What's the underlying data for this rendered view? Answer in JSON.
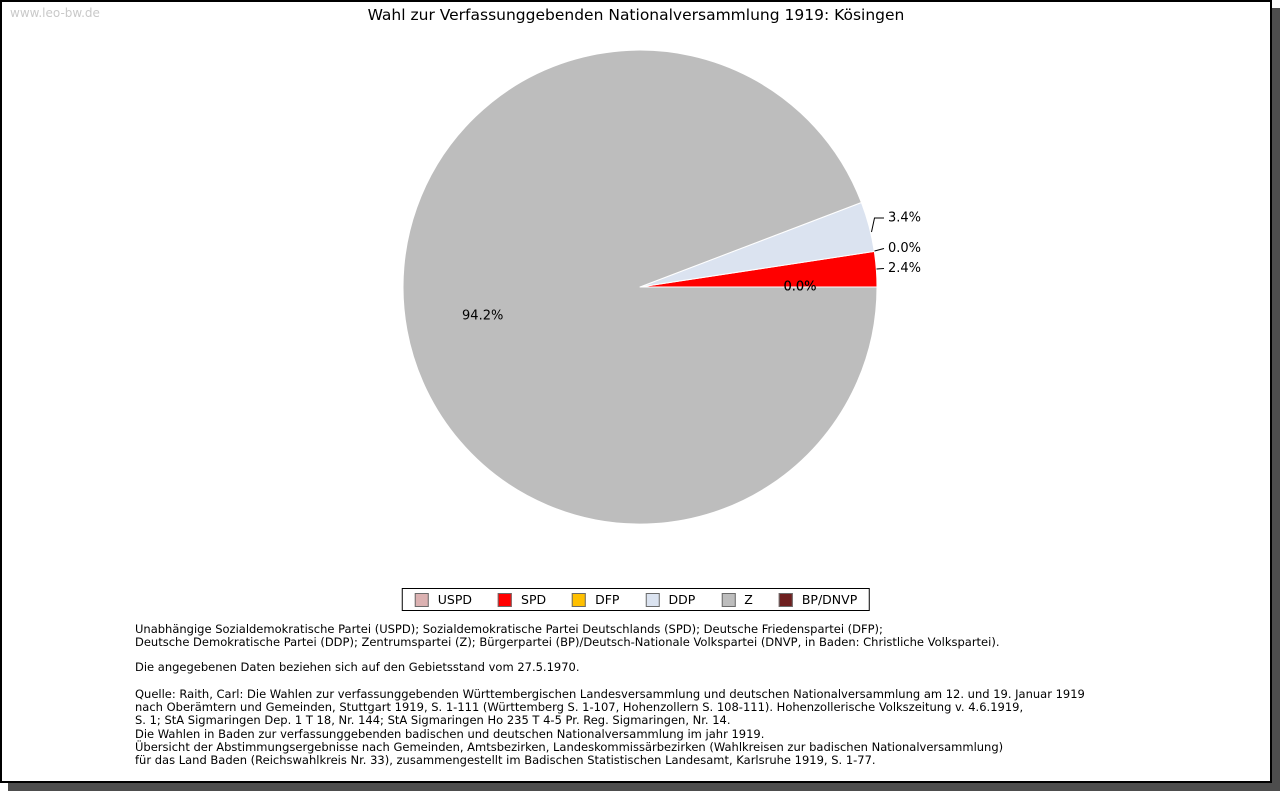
{
  "watermark": "www.leo-bw.de",
  "title": "Wahl zur Verfassunggebenden Nationalversammlung 1919: Kösingen",
  "chart_data": {
    "type": "pie",
    "title": "Wahl zur Verfassunggebenden Nationalversammlung 1919: Kösingen",
    "unit": "percent",
    "start_angle_deg": 0,
    "direction": "counterclockwise",
    "slices": [
      {
        "label": "USPD",
        "value": 0.0,
        "value_label": "0.0%",
        "color": "#dcb2b2",
        "label_placement": "inside"
      },
      {
        "label": "SPD",
        "value": 2.4,
        "value_label": "2.4%",
        "color": "#ff0000",
        "label_placement": "outside"
      },
      {
        "label": "DFP",
        "value": 0.0,
        "value_label": "0.0%",
        "color": "#ffc000",
        "label_placement": "outside"
      },
      {
        "label": "DDP",
        "value": 3.4,
        "value_label": "3.4%",
        "color": "#dbe3f0",
        "label_placement": "outside"
      },
      {
        "label": "Z",
        "value": 94.2,
        "value_label": "94.2%",
        "color": "#bdbdbd",
        "label_placement": "inside"
      },
      {
        "label": "BP/DNVP",
        "value": 0.0,
        "value_label": "0.0%",
        "color": "#6e1f1f",
        "label_placement": "inside"
      }
    ],
    "legend_position": "bottom",
    "legend_entries": [
      "USPD",
      "SPD",
      "DFP",
      "DDP",
      "Z",
      "BP/DNVP"
    ]
  },
  "footnotes": {
    "party_lines": [
      "Unabhängige Sozialdemokratische Partei (USPD); Sozialdemokratische Partei Deutschlands (SPD); Deutsche Friedenspartei (DFP);",
      "Deutsche Demokratische Partei (DDP); Zentrumspartei (Z); Bürgerpartei (BP)/Deutsch-Nationale Volkspartei (DNVP, in Baden: Christliche Volkspartei)."
    ],
    "data_note": "Die angegebenen Daten beziehen sich auf den Gebietsstand vom 27.5.1970.",
    "source_lines": [
      "Quelle: Raith, Carl: Die Wahlen zur verfassunggebenden Württembergischen Landesversammlung und deutschen Nationalversammlung am 12. und 19. Januar 1919",
      "nach Oberämtern und Gemeinden, Stuttgart 1919, S. 1-111 (Württemberg S. 1-107, Hohenzollern S. 108-111). Hohenzollerische Volkszeitung v. 4.6.1919,",
      "S. 1; StA Sigmaringen Dep. 1 T 18, Nr. 144; StA Sigmaringen Ho 235 T 4-5 Pr. Reg. Sigmaringen, Nr. 14.",
      "Die Wahlen in Baden zur verfassunggebenden badischen und deutschen Nationalversammlung im jahr 1919.",
      "Übersicht der Abstimmungsergebnisse nach Gemeinden, Amtsbezirken, Landeskommissärbezirken (Wahlkreisen zur badischen Nationalversammlung)",
      "für das Land Baden (Reichswahlkreis Nr. 33), zusammengestellt im Badischen Statistischen Landesamt, Karlsruhe 1919, S. 1-77."
    ]
  }
}
